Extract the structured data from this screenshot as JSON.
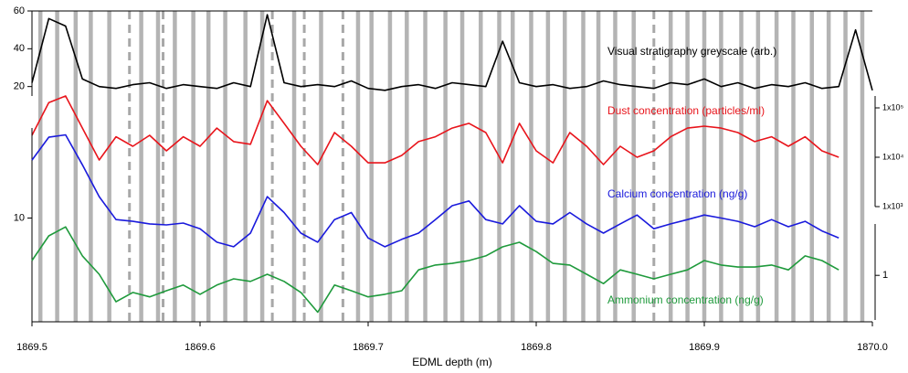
{
  "chart_data": {
    "type": "line",
    "xlabel": "EDML depth (m)",
    "xlim": [
      1869.5,
      1870.0
    ],
    "xticks": [
      1869.5,
      1869.6,
      1869.7,
      1869.8,
      1869.9,
      {
        "value": 1870.0,
        "label": "1870.0"
      }
    ],
    "x": [
      1869.5,
      1869.51,
      1869.52,
      1869.53,
      1869.54,
      1869.55,
      1869.56,
      1869.57,
      1869.58,
      1869.59,
      1869.6,
      1869.61,
      1869.62,
      1869.63,
      1869.64,
      1869.65,
      1869.66,
      1869.67,
      1869.68,
      1869.69,
      1869.7,
      1869.71,
      1869.72,
      1869.73,
      1869.74,
      1869.75,
      1869.76,
      1869.77,
      1869.78,
      1869.79,
      1869.8,
      1869.81,
      1869.82,
      1869.83,
      1869.84,
      1869.85,
      1869.86,
      1869.87,
      1869.88,
      1869.89,
      1869.9,
      1869.91,
      1869.92,
      1869.93,
      1869.94,
      1869.95,
      1869.96,
      1869.97,
      1869.98,
      1869.99,
      1870.0
    ],
    "annual_layers": [
      1869.505,
      1869.515,
      1869.526,
      1869.535,
      1869.546,
      1869.565,
      1869.575,
      1869.585,
      1869.596,
      1869.605,
      1869.615,
      1869.627,
      1869.637,
      1869.656,
      1869.672,
      1869.694,
      1869.702,
      1869.713,
      1869.723,
      1869.734,
      1869.746,
      1869.756,
      1869.767,
      1869.778,
      1869.786,
      1869.797,
      1869.807,
      1869.817,
      1869.828,
      1869.837,
      1869.847,
      1869.858,
      1869.88,
      1869.89,
      1869.9,
      1869.91,
      1869.922,
      1869.932,
      1869.943,
      1869.953,
      1869.964,
      1869.974,
      1869.984,
      1869.994
    ],
    "uncertain_layers": [
      1869.558,
      1869.578,
      1869.643,
      1869.662,
      1869.685,
      1869.87
    ],
    "series": [
      {
        "name": "Visual stratigraphy greyscale (arb.)",
        "color": "#000000",
        "axis": "left",
        "scale": "linear",
        "ylim": [
          15,
          60
        ],
        "yticks": [
          20,
          40,
          60
        ],
        "values": [
          22,
          56,
          52,
          24,
          20,
          19,
          21,
          22,
          19,
          21,
          20,
          19,
          22,
          20,
          58,
          22,
          20,
          21,
          20,
          23,
          19,
          18,
          20,
          21,
          19,
          22,
          21,
          20,
          44,
          22,
          20,
          21,
          19,
          20,
          23,
          21,
          20,
          19,
          22,
          21,
          24,
          20,
          22,
          19,
          21,
          20,
          22,
          19,
          20,
          50,
          18
        ]
      },
      {
        "name": "Dust concentration (particles/ml)",
        "color": "#e8141b",
        "axis": "right",
        "scale": "log",
        "ylim": [
          1000,
          100000
        ],
        "yticks": [
          {
            "value": 1000,
            "label": "1x10³"
          },
          {
            "value": 10000,
            "label": "1x10⁴"
          },
          {
            "value": 100000,
            "label": "1x10⁵"
          }
        ],
        "values": [
          27800,
          128000,
          174000,
          39000,
          8800,
          26000,
          16700,
          27800,
          13500,
          26000,
          16700,
          39000,
          20700,
          18300,
          140000,
          48600,
          16700,
          7100,
          31600,
          16700,
          7700,
          7700,
          10900,
          20700,
          26000,
          39000,
          48600,
          31600,
          7700,
          48600,
          13500,
          7700,
          31600,
          16700,
          7100,
          16700,
          10000,
          13500,
          26000,
          39000,
          42700,
          39000,
          31600,
          20700,
          26000,
          16700,
          26000,
          13500,
          10000,
          null,
          null
        ]
      },
      {
        "name": "Calcium concentration (ng/g)",
        "color": "#1a1adc",
        "axis": "left",
        "scale": "log",
        "ylim": [
          3,
          100
        ],
        "yticks": [
          10
        ],
        "values": [
          44,
          79,
          84,
          39,
          17.3,
          9.6,
          9.2,
          8.6,
          8.4,
          8.8,
          7.6,
          5.4,
          4.8,
          6.8,
          17.3,
          11.5,
          6.8,
          5.4,
          9.6,
          11.5,
          6.0,
          4.8,
          5.8,
          6.8,
          9.6,
          13.7,
          15.5,
          9.6,
          8.6,
          13.7,
          9.2,
          8.6,
          11.5,
          8.6,
          6.8,
          8.6,
          10.8,
          7.6,
          8.6,
          9.6,
          10.8,
          10,
          9.2,
          8.0,
          9.6,
          8.0,
          9.2,
          7.2,
          6.0,
          null,
          null
        ]
      },
      {
        "name": "Ammonium concentration (ng/g)",
        "color": "#1f9a3c",
        "axis": "right",
        "scale": "log",
        "ylim": [
          0.3,
          4
        ],
        "yticks": [
          1
        ],
        "values": [
          1.49,
          2.9,
          3.7,
          1.69,
          1.03,
          0.49,
          0.63,
          0.56,
          0.66,
          0.77,
          0.6,
          0.77,
          0.91,
          0.85,
          1.03,
          0.85,
          0.63,
          0.37,
          0.77,
          0.66,
          0.56,
          0.6,
          0.66,
          1.16,
          1.32,
          1.38,
          1.49,
          1.69,
          2.16,
          2.44,
          1.9,
          1.38,
          1.32,
          1.03,
          0.8,
          1.16,
          1.03,
          0.91,
          1.03,
          1.16,
          1.49,
          1.32,
          1.25,
          1.25,
          1.32,
          1.16,
          1.69,
          1.49,
          1.16,
          null,
          null
        ]
      }
    ]
  }
}
